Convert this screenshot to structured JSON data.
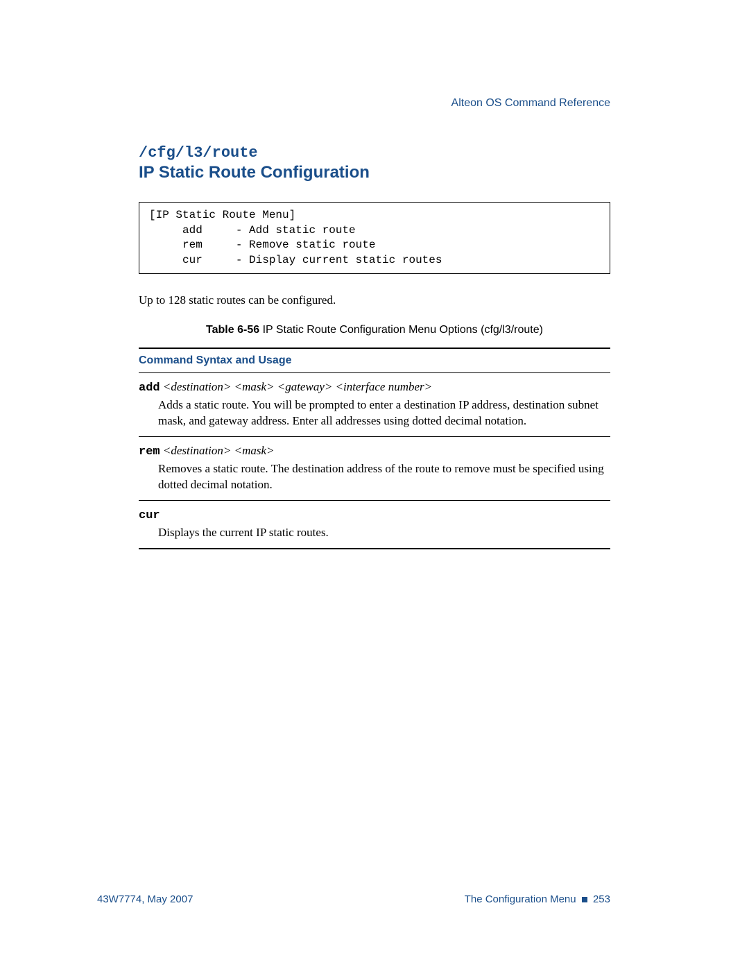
{
  "colors": {
    "accent": "#1a4e8a",
    "text": "#000000",
    "background": "#ffffff",
    "border": "#000000"
  },
  "header": {
    "reference": "Alteon OS  Command Reference"
  },
  "section": {
    "path": "/cfg/l3/route",
    "title": "IP Static Route Configuration"
  },
  "menu_box": {
    "title": "[IP Static Route Menu]",
    "items": [
      {
        "cmd": "add",
        "desc": "- Add static route"
      },
      {
        "cmd": "rem",
        "desc": "- Remove static route"
      },
      {
        "cmd": "cur",
        "desc": "- Display current static routes"
      }
    ]
  },
  "body_text": "Up to 128 static routes can be configured.",
  "table": {
    "caption_label": "Table 6-56",
    "caption_text": "  IP Static Route Configuration Menu Options (cfg/l3/route)",
    "header": "Command Syntax and Usage",
    "rows": [
      {
        "cmd": "add",
        "args": "  <destination>  <mask>  <gateway>  <interface number>",
        "desc": "Adds a static route. You will be prompted to enter a destination IP address, destination subnet mask, and gateway address. Enter all addresses using dotted decimal notation."
      },
      {
        "cmd": "rem",
        "args": "  <destination>  <mask>",
        "desc": "Removes a static route. The destination address of the route to remove must be specified using dotted decimal notation."
      },
      {
        "cmd": "cur",
        "args": "",
        "desc": "Displays the current IP static routes."
      }
    ]
  },
  "footer": {
    "left": "43W7774, May 2007",
    "right_label": "The Configuration Menu",
    "right_page": "253"
  }
}
